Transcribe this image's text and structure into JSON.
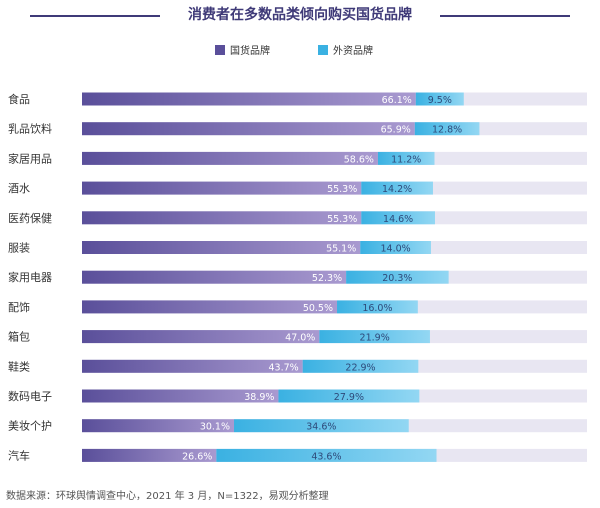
{
  "title": "消费者在多数品类倾向购买国货品牌",
  "source": "数据来源：环球舆情调查中心，2021 年 3 月，N=1322，易观分析整理",
  "colors": {
    "domestic_start": "#5a4f9a",
    "domestic_end": "#a99ad0",
    "foreign_start": "#3ab1e2",
    "foreign_end": "#93d7f3",
    "track": "#e8e6f2",
    "title": "#3f3a78"
  },
  "chart_data": {
    "type": "bar",
    "orientation": "horizontal",
    "stacked": true,
    "title": "消费者在多数品类倾向购买国货品牌",
    "legend_position": "top",
    "categories": [
      "食品",
      "乳品饮料",
      "家居用品",
      "酒水",
      "医药保健",
      "服装",
      "家用电器",
      "配饰",
      "箱包",
      "鞋类",
      "数码电子",
      "美妆个护",
      "汽车"
    ],
    "series": [
      {
        "name": "国货品牌",
        "values": [
          66.1,
          65.9,
          58.6,
          55.3,
          55.3,
          55.1,
          52.3,
          50.5,
          47.0,
          43.7,
          38.9,
          30.1,
          26.6
        ]
      },
      {
        "name": "外资品牌",
        "values": [
          9.5,
          12.8,
          11.2,
          14.2,
          14.6,
          14.0,
          20.3,
          16.0,
          21.9,
          22.9,
          27.9,
          34.6,
          43.6
        ]
      }
    ],
    "labels": [
      [
        "66.1%",
        "9.5%"
      ],
      [
        "65.9%",
        "12.8%"
      ],
      [
        "58.6%",
        "11.2%"
      ],
      [
        "55.3%",
        "14.2%"
      ],
      [
        "55.3%",
        "14.6%"
      ],
      [
        "55.1%",
        "14.0%"
      ],
      [
        "52.3%",
        "20.3%"
      ],
      [
        "50.5%",
        "16.0%"
      ],
      [
        "47.0%",
        "21.9%"
      ],
      [
        "43.7%",
        "22.9%"
      ],
      [
        "38.9%",
        "27.9%"
      ],
      [
        "30.1%",
        "34.6%"
      ],
      [
        "26.6%",
        "43.6%"
      ]
    ],
    "xlim": [
      0,
      100
    ],
    "grid": false
  }
}
